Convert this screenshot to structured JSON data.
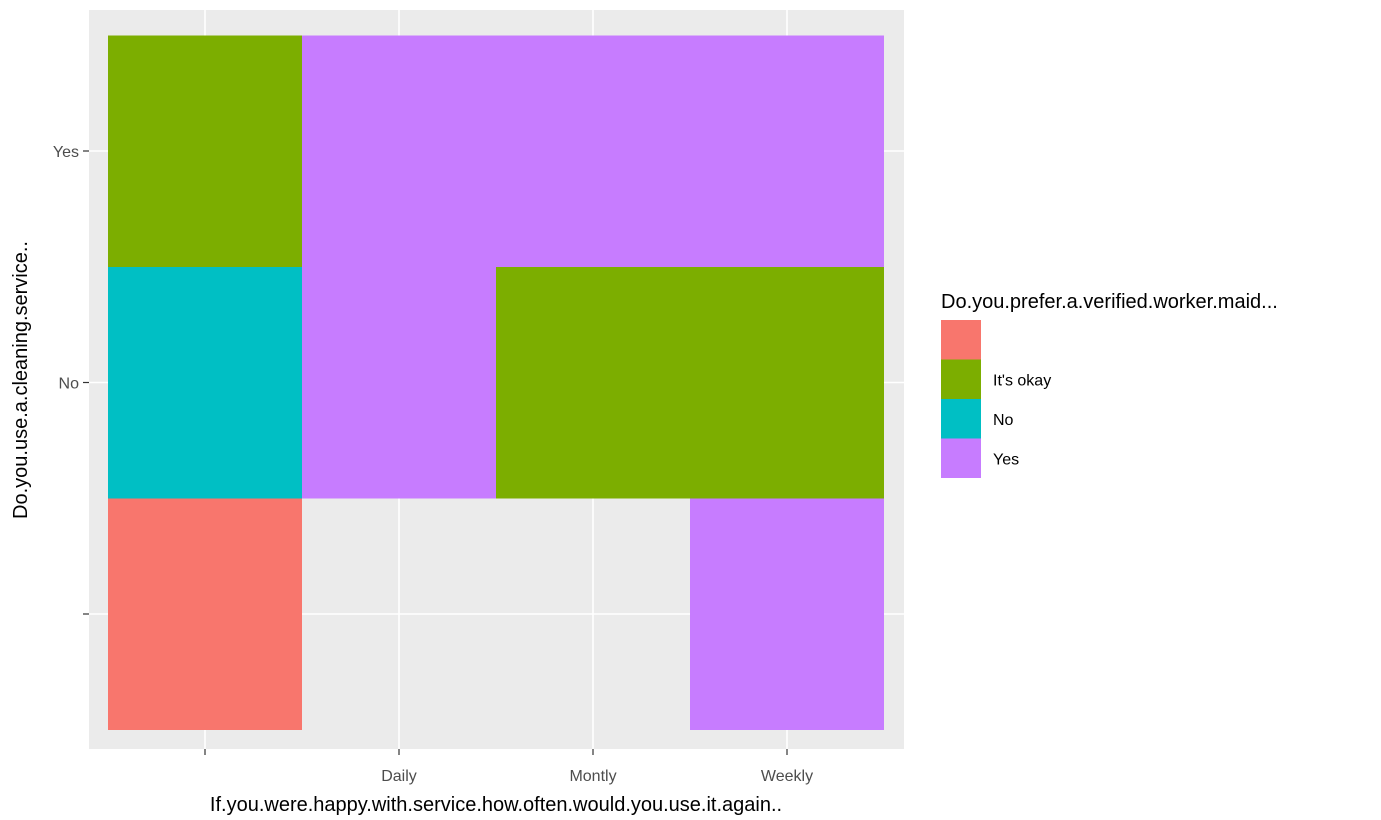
{
  "chart_data": {
    "type": "heatmap",
    "x_categories": [
      "",
      "Daily",
      "Montly",
      "Weekly"
    ],
    "y_categories": [
      "",
      "No",
      "Yes"
    ],
    "xlabel": "If.you.were.happy.with.service.how.often.would.you.use.it.again..",
    "ylabel": "Do.you.use.a.cleaning.service..",
    "cells": [
      {
        "x": "",
        "y": "",
        "fill": ""
      },
      {
        "x": "",
        "y": "No",
        "fill": "No"
      },
      {
        "x": "",
        "y": "Yes",
        "fill": "It's okay"
      },
      {
        "x": "Daily",
        "y": "No",
        "fill": "Yes"
      },
      {
        "x": "Daily",
        "y": "Yes",
        "fill": "Yes"
      },
      {
        "x": "Montly",
        "y": "No",
        "fill": "It's okay"
      },
      {
        "x": "Montly",
        "y": "Yes",
        "fill": "Yes"
      },
      {
        "x": "Weekly",
        "y": "",
        "fill": "Yes"
      },
      {
        "x": "Weekly",
        "y": "No",
        "fill": "It's okay"
      },
      {
        "x": "Weekly",
        "y": "Yes",
        "fill": "Yes"
      }
    ],
    "legend": {
      "title": "Do.you.prefer.a.verified.worker.maid...",
      "position": "right",
      "entries": [
        {
          "label": "",
          "color": "#F8766D"
        },
        {
          "label": "It's okay",
          "color": "#7CAE00"
        },
        {
          "label": "No",
          "color": "#00BFC4"
        },
        {
          "label": "Yes",
          "color": "#C77CFF"
        }
      ]
    },
    "panel_background": "#EBEBEB",
    "grid": true,
    "grid_color": "#FFFFFF"
  }
}
